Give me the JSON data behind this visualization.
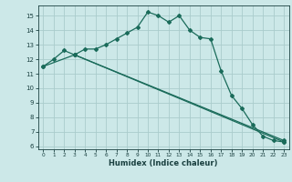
{
  "title": "",
  "xlabel": "Humidex (Indice chaleur)",
  "bg_color": "#cce8e8",
  "grid_color": "#aacccc",
  "line_color": "#1a6b5a",
  "xlim": [
    -0.5,
    23.5
  ],
  "ylim": [
    5.8,
    15.7
  ],
  "yticks": [
    6,
    7,
    8,
    9,
    10,
    11,
    12,
    13,
    14,
    15
  ],
  "xticks": [
    0,
    1,
    2,
    3,
    4,
    5,
    6,
    7,
    8,
    9,
    10,
    11,
    12,
    13,
    14,
    15,
    16,
    17,
    18,
    19,
    20,
    21,
    22,
    23
  ],
  "line1_x": [
    0,
    1,
    2,
    3,
    4,
    5,
    6,
    7,
    8,
    9,
    10,
    11,
    12,
    13,
    14,
    15,
    16,
    17,
    18,
    19,
    20,
    21,
    22,
    23
  ],
  "line1_y": [
    11.5,
    12.0,
    12.6,
    12.3,
    12.7,
    12.7,
    13.0,
    13.4,
    13.8,
    14.2,
    15.25,
    15.0,
    14.55,
    15.0,
    14.0,
    13.5,
    13.4,
    11.2,
    9.5,
    8.6,
    7.5,
    6.7,
    6.4,
    6.3
  ],
  "line2_x": [
    0,
    3,
    23
  ],
  "line2_y": [
    11.5,
    12.3,
    6.4
  ],
  "line3_x": [
    3,
    23
  ],
  "line3_y": [
    12.3,
    6.3
  ],
  "markersize": 2.0,
  "linewidth": 0.9
}
